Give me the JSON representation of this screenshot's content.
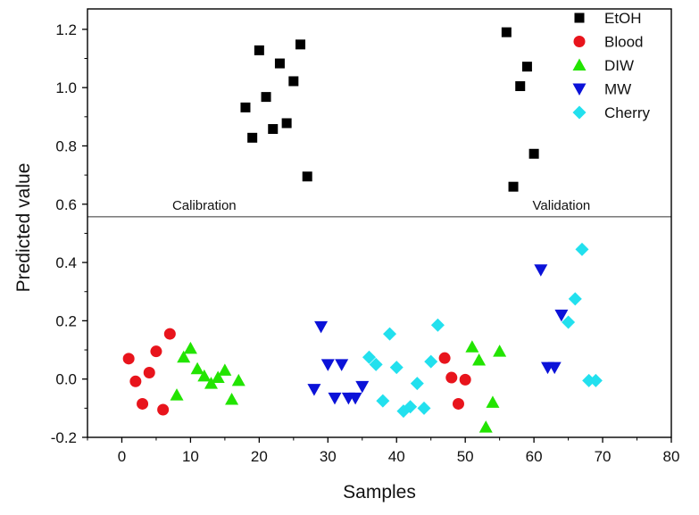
{
  "chart_data": {
    "type": "scatter",
    "title": "",
    "xlabel": "Samples",
    "ylabel": "Predicted value",
    "xlim": [
      -5,
      80
    ],
    "ylim": [
      -0.2,
      1.27
    ],
    "xticks": [
      0,
      10,
      20,
      30,
      40,
      50,
      60,
      70,
      80
    ],
    "yticks": [
      -0.2,
      0.0,
      0.2,
      0.4,
      0.6,
      0.8,
      1.0,
      1.2
    ],
    "xtick_labels": [
      "0",
      "10",
      "20",
      "30",
      "40",
      "50",
      "60",
      "70",
      "80"
    ],
    "ytick_labels": [
      "-0.2",
      "0.0",
      "0.2",
      "0.4",
      "0.6",
      "0.8",
      "1.0",
      "1.2"
    ],
    "divider_y": 0.557,
    "annotations": {
      "calibration": "Calibration",
      "validation": "Validation"
    },
    "legend_position": "top-right",
    "series": [
      {
        "name": "EtOH",
        "marker": "square",
        "color": "#000000",
        "points": [
          [
            18,
            0.932
          ],
          [
            19,
            0.828
          ],
          [
            20,
            1.128
          ],
          [
            21,
            0.968
          ],
          [
            22,
            0.858
          ],
          [
            23,
            1.083
          ],
          [
            24,
            0.878
          ],
          [
            25,
            1.022
          ],
          [
            26,
            1.148
          ],
          [
            27,
            0.695
          ],
          [
            56,
            1.19
          ],
          [
            57,
            0.66
          ],
          [
            58,
            1.005
          ],
          [
            59,
            1.072
          ],
          [
            60,
            0.773
          ]
        ]
      },
      {
        "name": "Blood",
        "marker": "circle",
        "color": "#e8141c",
        "points": [
          [
            1,
            0.07
          ],
          [
            2,
            -0.008
          ],
          [
            3,
            -0.085
          ],
          [
            4,
            0.022
          ],
          [
            5,
            0.095
          ],
          [
            6,
            -0.105
          ],
          [
            7,
            0.155
          ],
          [
            47,
            0.072
          ],
          [
            48,
            0.005
          ],
          [
            49,
            -0.085
          ],
          [
            50,
            -0.002
          ]
        ]
      },
      {
        "name": "DIW",
        "marker": "triangle-up",
        "color": "#22e400",
        "points": [
          [
            8,
            -0.055
          ],
          [
            9,
            0.075
          ],
          [
            10,
            0.105
          ],
          [
            11,
            0.035
          ],
          [
            12,
            0.01
          ],
          [
            13,
            -0.015
          ],
          [
            14,
            0.005
          ],
          [
            15,
            0.03
          ],
          [
            16,
            -0.07
          ],
          [
            17,
            -0.005
          ],
          [
            51,
            0.11
          ],
          [
            52,
            0.065
          ],
          [
            53,
            -0.165
          ],
          [
            54,
            -0.08
          ],
          [
            55,
            0.095
          ]
        ]
      },
      {
        "name": "MW",
        "marker": "triangle-down",
        "color": "#0b12d8",
        "points": [
          [
            28,
            -0.035
          ],
          [
            29,
            0.18
          ],
          [
            30,
            0.05
          ],
          [
            31,
            -0.065
          ],
          [
            32,
            0.05
          ],
          [
            33,
            -0.065
          ],
          [
            34,
            -0.065
          ],
          [
            35,
            -0.025
          ],
          [
            61,
            0.375
          ],
          [
            62,
            0.04
          ],
          [
            63,
            0.04
          ],
          [
            64,
            0.22
          ]
        ]
      },
      {
        "name": "Cherry",
        "marker": "diamond",
        "color": "#22e0ee",
        "points": [
          [
            36,
            0.075
          ],
          [
            37,
            0.05
          ],
          [
            38,
            -0.075
          ],
          [
            39,
            0.155
          ],
          [
            40,
            0.04
          ],
          [
            41,
            -0.11
          ],
          [
            42,
            -0.095
          ],
          [
            43,
            -0.015
          ],
          [
            44,
            -0.1
          ],
          [
            45,
            0.06
          ],
          [
            46,
            0.185
          ],
          [
            65,
            0.195
          ],
          [
            66,
            0.275
          ],
          [
            67,
            0.445
          ],
          [
            68,
            -0.005
          ],
          [
            69,
            -0.005
          ]
        ]
      }
    ]
  }
}
